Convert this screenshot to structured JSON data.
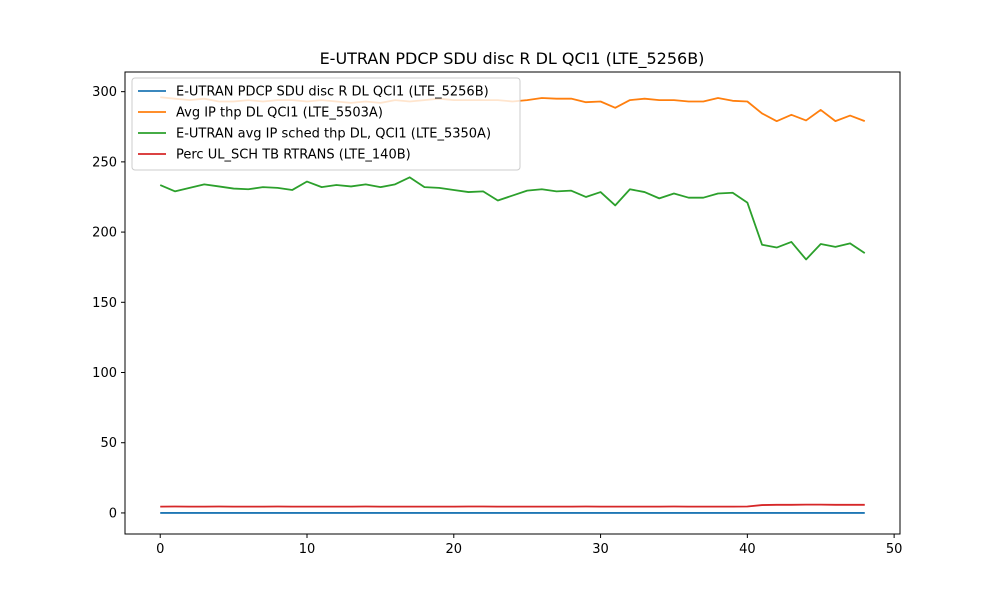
{
  "chart_data": {
    "type": "line",
    "title": "E-UTRAN PDCP SDU disc R DL QCI1 (LTE_5256B)",
    "xlabel": "",
    "ylabel": "",
    "xlim": [
      -2.4,
      50.4
    ],
    "ylim": [
      -15,
      314
    ],
    "xticks": [
      0,
      10,
      20,
      30,
      40,
      50
    ],
    "yticks": [
      0,
      50,
      100,
      150,
      200,
      250,
      300
    ],
    "grid": false,
    "legend_position": "upper-left",
    "series": [
      {
        "name": "E-UTRAN PDCP SDU disc R DL QCI1 (LTE_5256B)",
        "color": "#1f77b4",
        "values": [
          0.0,
          0.0,
          0.0,
          0.0,
          0.0,
          0.0,
          0.0,
          0.0,
          0.0,
          0.0,
          0.0,
          0.0,
          0.0,
          0.0,
          0.0,
          0.0,
          0.0,
          0.0,
          0.0,
          0.0,
          0.0,
          0.0,
          0.0,
          0.0,
          0.0,
          0.0,
          0.0,
          0.0,
          0.0,
          0.0,
          0.0,
          0.0,
          0.0,
          0.0,
          0.0,
          0.0,
          0.0,
          0.0,
          0.0,
          0.0,
          0.0,
          0.0,
          0.0,
          0.0,
          0.0,
          0.0,
          0.0,
          0.0,
          0.0
        ]
      },
      {
        "name": "Avg IP thp DL QCI1 (LTE_5503A)",
        "color": "#ff7f0e",
        "values": [
          296,
          295,
          294,
          295,
          293,
          293,
          294,
          293,
          294,
          294,
          293,
          294,
          293,
          292,
          293,
          292,
          294,
          293,
          294,
          295,
          294,
          294,
          294,
          294,
          293,
          294,
          295.5,
          295,
          295,
          292.5,
          293,
          288.5,
          294,
          295,
          294,
          294,
          293,
          293,
          295.5,
          293.5,
          293,
          284.5,
          279,
          283.5,
          279.5,
          287,
          279,
          283,
          279
        ]
      },
      {
        "name": "E-UTRAN avg IP sched thp DL, QCI1 (LTE_5350A)",
        "color": "#2ca02c",
        "values": [
          233.5,
          229,
          231.5,
          234,
          232.5,
          231,
          230.5,
          232,
          231.5,
          230,
          236,
          232,
          233.5,
          232.5,
          234,
          232,
          234,
          239,
          232,
          231.5,
          230,
          228.5,
          229,
          222.5,
          226,
          229.5,
          230.5,
          229,
          229.5,
          225,
          228.5,
          219,
          230.5,
          228.5,
          224,
          227.5,
          224.5,
          224.5,
          227.5,
          228,
          221,
          191,
          189,
          193,
          180.5,
          191.5,
          189.5,
          192,
          185
        ]
      },
      {
        "name": "Perc UL_SCH TB RTRANS (LTE_140B)",
        "color": "#d62728",
        "values": [
          4.5,
          4.6,
          4.5,
          4.5,
          4.6,
          4.5,
          4.5,
          4.5,
          4.6,
          4.5,
          4.5,
          4.5,
          4.5,
          4.5,
          4.6,
          4.5,
          4.5,
          4.5,
          4.5,
          4.5,
          4.5,
          4.6,
          4.6,
          4.5,
          4.5,
          4.5,
          4.5,
          4.5,
          4.5,
          4.6,
          4.5,
          4.5,
          4.5,
          4.5,
          4.5,
          4.6,
          4.5,
          4.5,
          4.5,
          4.5,
          4.6,
          5.6,
          5.8,
          5.8,
          5.9,
          5.9,
          5.8,
          5.8,
          5.8
        ]
      }
    ]
  }
}
